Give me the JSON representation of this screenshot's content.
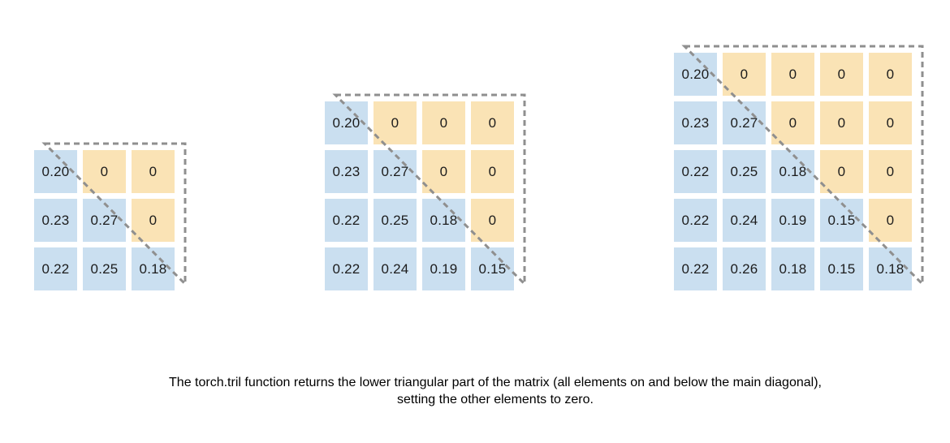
{
  "caption": "The torch.tril function returns the lower triangular part of the matrix (all elements on and below the main diagonal), setting the other elements to zero.",
  "colors": {
    "lower": "#cadff0",
    "upper": "#fae3b5",
    "dash": "#8f8f8f",
    "text": "#1c1c1c",
    "background": "#ffffff"
  },
  "matrices": [
    {
      "size": "3x3",
      "rows": [
        [
          "0.20",
          "0",
          "0"
        ],
        [
          "0.23",
          "0.27",
          "0"
        ],
        [
          "0.22",
          "0.25",
          "0.18"
        ]
      ]
    },
    {
      "size": "4x4",
      "rows": [
        [
          "0.20",
          "0",
          "0",
          "0"
        ],
        [
          "0.23",
          "0.27",
          "0",
          "0"
        ],
        [
          "0.22",
          "0.25",
          "0.18",
          "0"
        ],
        [
          "0.22",
          "0.24",
          "0.19",
          "0.15"
        ]
      ]
    },
    {
      "size": "5x5",
      "rows": [
        [
          "0.20",
          "0",
          "0",
          "0",
          "0"
        ],
        [
          "0.23",
          "0.27",
          "0",
          "0",
          "0"
        ],
        [
          "0.22",
          "0.25",
          "0.18",
          "0",
          "0"
        ],
        [
          "0.22",
          "0.24",
          "0.19",
          "0.15",
          "0"
        ],
        [
          "0.22",
          "0.26",
          "0.18",
          "0.15",
          "0.18"
        ]
      ]
    }
  ]
}
